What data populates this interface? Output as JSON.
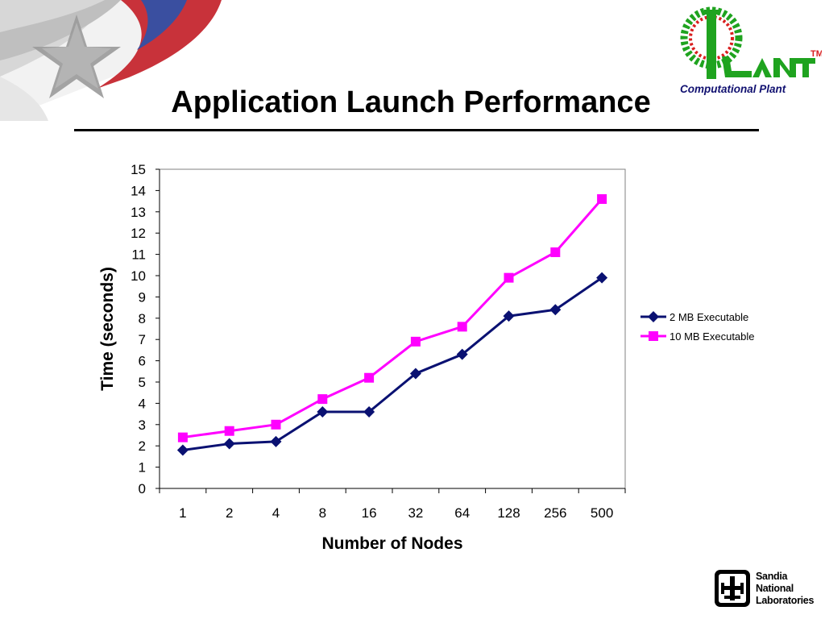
{
  "slide": {
    "title": "Application Launch Performance"
  },
  "logos": {
    "plant_subtitle": "Computational Plant",
    "plant_tm": "TM",
    "sandia_lines": [
      "Sandia",
      "National",
      "Laboratories"
    ]
  },
  "colors": {
    "series_2mb": "#0a1172",
    "series_10mb": "#ff00ff",
    "plant_green": "#1fa31f",
    "plant_red": "#d81e1e",
    "plant_navy": "#101070"
  },
  "chart_data": {
    "type": "line",
    "title": "",
    "xlabel": "Number of Nodes",
    "ylabel": "Time (seconds)",
    "categories": [
      "1",
      "2",
      "4",
      "8",
      "16",
      "32",
      "64",
      "128",
      "256",
      "500"
    ],
    "ylim": [
      0,
      15
    ],
    "yticks": [
      0,
      1,
      2,
      3,
      4,
      5,
      6,
      7,
      8,
      9,
      10,
      11,
      12,
      13,
      14,
      15
    ],
    "grid": false,
    "legend_position": "right",
    "series": [
      {
        "name": "2 MB Executable",
        "marker": "diamond",
        "values": [
          1.8,
          2.1,
          2.2,
          3.6,
          3.6,
          5.4,
          6.3,
          8.1,
          8.4,
          9.9
        ]
      },
      {
        "name": "10 MB Executable",
        "marker": "square",
        "values": [
          2.4,
          2.7,
          3.0,
          4.2,
          5.2,
          6.9,
          7.6,
          9.9,
          11.1,
          13.6
        ]
      }
    ]
  }
}
